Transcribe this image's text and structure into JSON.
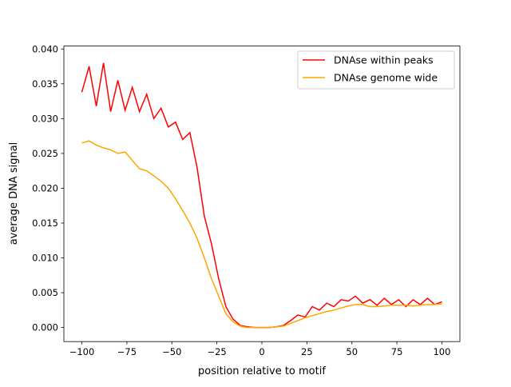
{
  "chart_data": {
    "type": "line",
    "title": "",
    "xlabel": "position relative to motif",
    "ylabel": "average DNA signal",
    "xlim": [
      -110,
      110
    ],
    "ylim": [
      -0.00202,
      0.04042
    ],
    "xticks": [
      -100,
      -75,
      -50,
      -25,
      0,
      25,
      50,
      75,
      100
    ],
    "yticks": [
      "0.000",
      "0.005",
      "0.010",
      "0.015",
      "0.020",
      "0.025",
      "0.030",
      "0.035",
      "0.040"
    ],
    "grid": false,
    "legend_position": "top-right",
    "x": [
      -100,
      -96,
      -92,
      -88,
      -84,
      -80,
      -76,
      -72,
      -68,
      -64,
      -60,
      -56,
      -52,
      -48,
      -44,
      -40,
      -36,
      -32,
      -28,
      -24,
      -20,
      -16,
      -12,
      -8,
      -4,
      0,
      4,
      8,
      12,
      16,
      20,
      24,
      28,
      32,
      36,
      40,
      44,
      48,
      52,
      56,
      60,
      64,
      68,
      72,
      76,
      80,
      84,
      88,
      92,
      96,
      100
    ],
    "series": [
      {
        "name": "DNAse within peaks",
        "color": "#ff0000",
        "values": [
          0.0338,
          0.0375,
          0.0318,
          0.038,
          0.031,
          0.0355,
          0.0312,
          0.0345,
          0.031,
          0.0335,
          0.03,
          0.0315,
          0.0288,
          0.0295,
          0.027,
          0.028,
          0.023,
          0.016,
          0.012,
          0.007,
          0.003,
          0.0012,
          0.0003,
          0.0001,
          0.0,
          0.0,
          0.0,
          0.0001,
          0.0003,
          0.001,
          0.0018,
          0.0015,
          0.003,
          0.0025,
          0.0035,
          0.003,
          0.004,
          0.0038,
          0.0045,
          0.0035,
          0.004,
          0.0032,
          0.0042,
          0.0033,
          0.004,
          0.003,
          0.004,
          0.0033,
          0.0042,
          0.0033,
          0.0037
        ]
      },
      {
        "name": "DNAse genome wide",
        "color": "#ffa500",
        "values": [
          0.0265,
          0.0268,
          0.0262,
          0.0258,
          0.0255,
          0.025,
          0.0252,
          0.024,
          0.0228,
          0.0225,
          0.0218,
          0.021,
          0.02,
          0.0185,
          0.0168,
          0.015,
          0.0128,
          0.01,
          0.007,
          0.0045,
          0.002,
          0.0008,
          0.0002,
          0.0,
          0.0,
          0.0,
          0.0,
          0.0001,
          0.0002,
          0.0006,
          0.001,
          0.0014,
          0.0017,
          0.002,
          0.0023,
          0.0025,
          0.0028,
          0.0031,
          0.0033,
          0.0033,
          0.003,
          0.003,
          0.0031,
          0.0032,
          0.0032,
          0.0032,
          0.0031,
          0.0032,
          0.0033,
          0.0033,
          0.0034
        ]
      }
    ]
  }
}
